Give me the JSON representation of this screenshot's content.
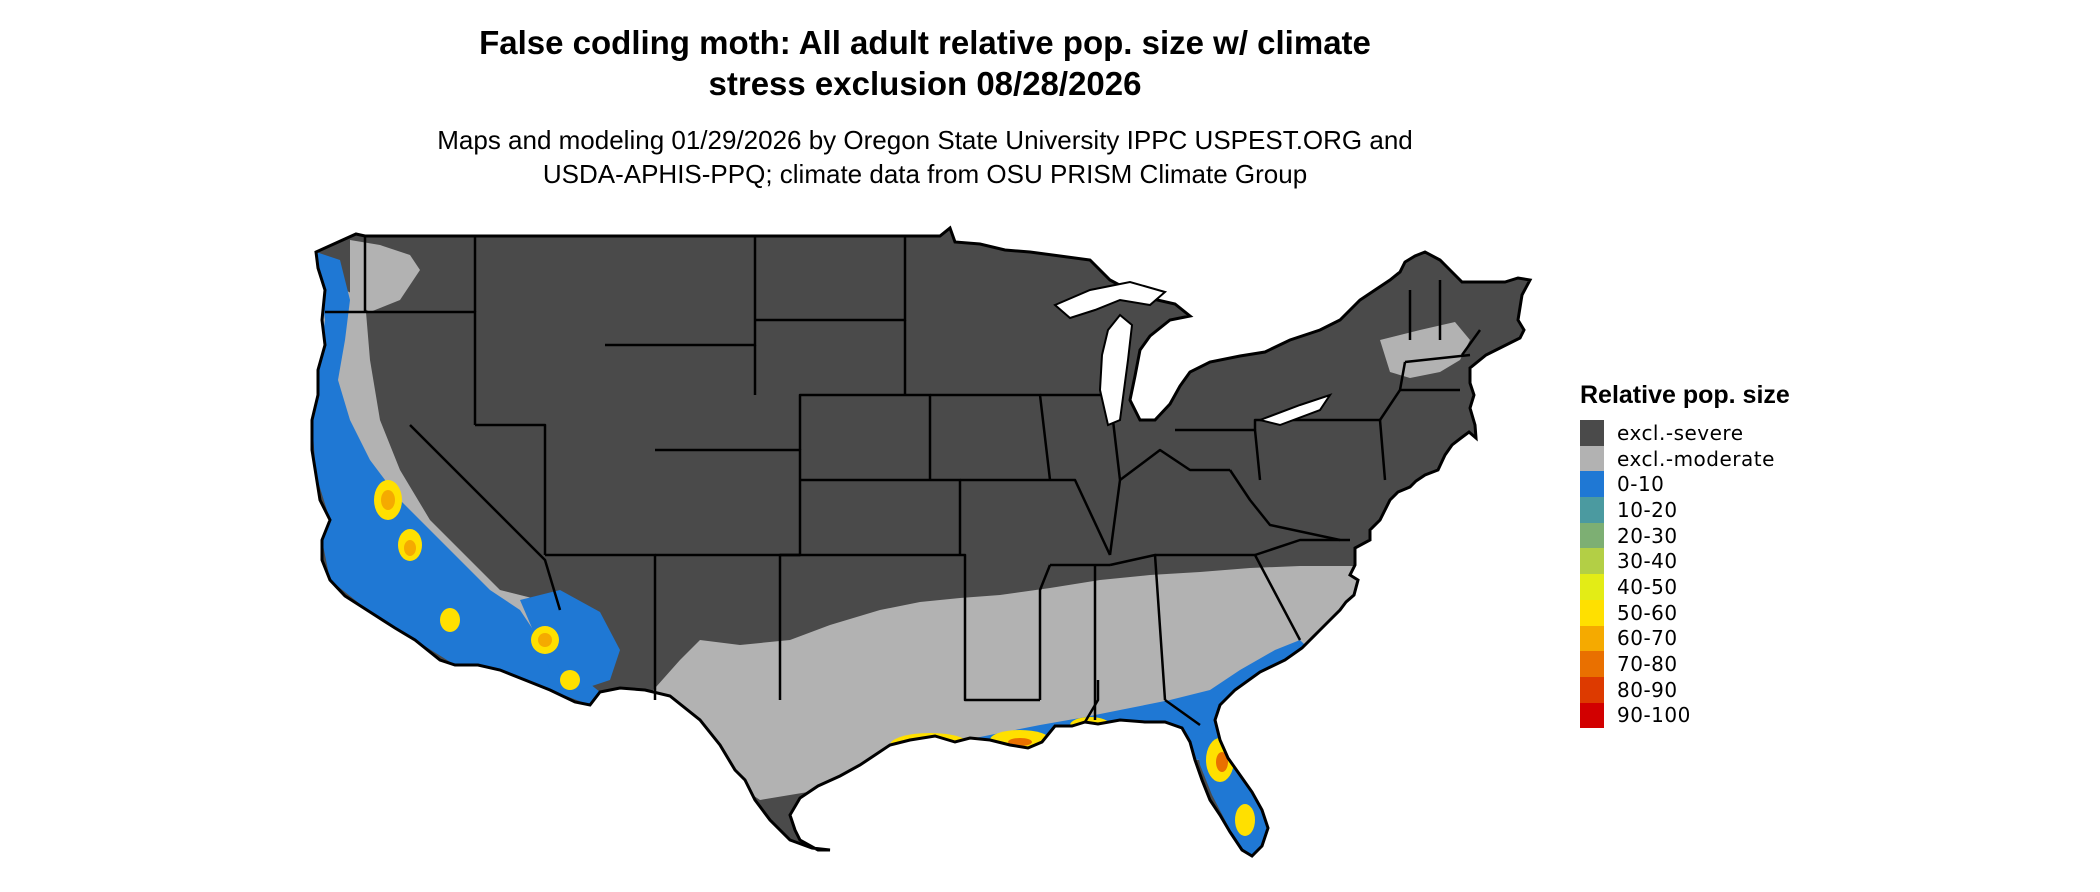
{
  "title": {
    "line1": "False codling moth: All adult relative pop. size w/ climate",
    "line2": "stress exclusion 08/28/2026"
  },
  "subtitle": {
    "line1": "Maps and modeling 01/29/2026 by Oregon State University IPPC USPEST.ORG and",
    "line2": "USDA-APHIS-PPQ; climate data from OSU PRISM Climate Group"
  },
  "legend": {
    "title": "Relative pop. size",
    "items": [
      {
        "label": "excl.-severe",
        "color": "#4a4a4a"
      },
      {
        "label": "excl.-moderate",
        "color": "#b2b2b2"
      },
      {
        "label": "0-10",
        "color": "#1f78d4"
      },
      {
        "label": "10-20",
        "color": "#4b9aa0"
      },
      {
        "label": "20-30",
        "color": "#7daf73"
      },
      {
        "label": "30-40",
        "color": "#b3cf45"
      },
      {
        "label": "40-50",
        "color": "#e3ec16"
      },
      {
        "label": "50-60",
        "color": "#ffe000"
      },
      {
        "label": "60-70",
        "color": "#f5aa00"
      },
      {
        "label": "70-80",
        "color": "#e97000"
      },
      {
        "label": "80-90",
        "color": "#dd3a00"
      },
      {
        "label": "90-100",
        "color": "#d20000"
      }
    ]
  },
  "map": {
    "region": "contiguous-united-states",
    "outline_color": "#000000"
  }
}
